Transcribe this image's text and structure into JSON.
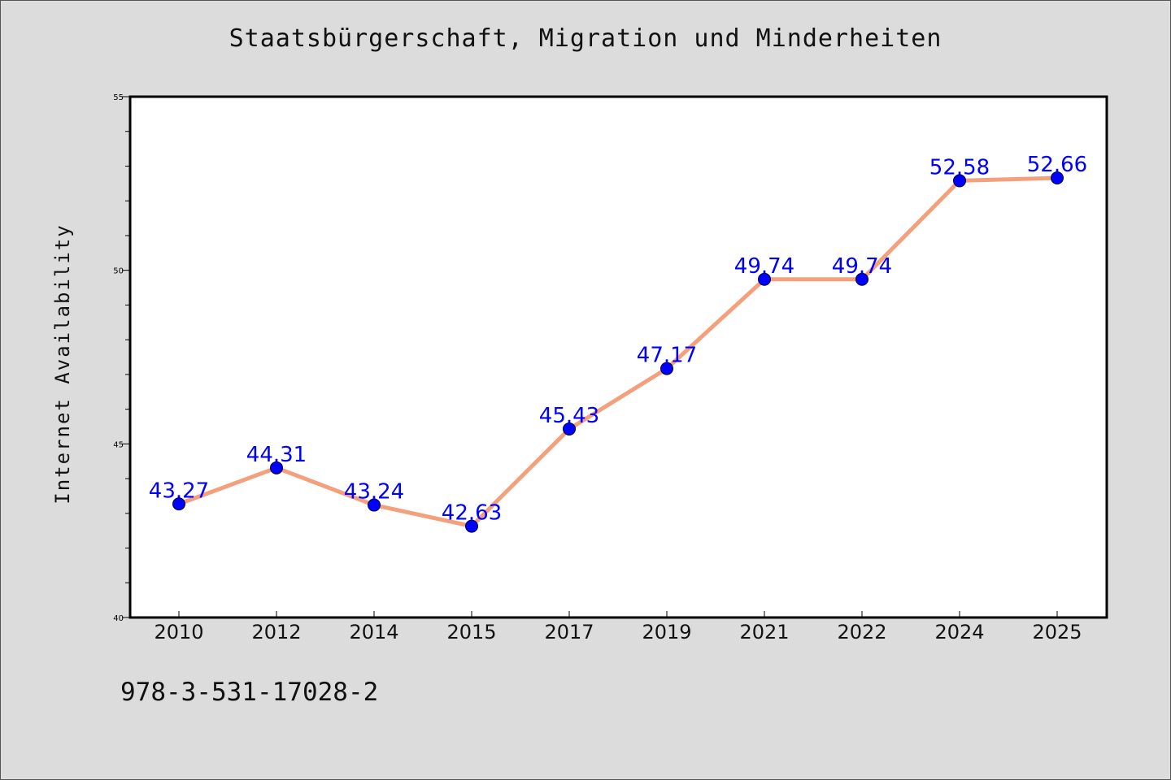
{
  "chart_data": {
    "type": "line",
    "title": "Staatsbürgerschaft, Migration und Minderheiten",
    "xlabel": "",
    "ylabel": "Internet Availability",
    "categories": [
      "2010",
      "2012",
      "2014",
      "2015",
      "2017",
      "2019",
      "2021",
      "2022",
      "2024",
      "2025"
    ],
    "series": [
      {
        "values": [
          43.27,
          44.31,
          43.24,
          42.63,
          45.43,
          47.17,
          49.74,
          49.74,
          52.58,
          52.66
        ],
        "labels": [
          "43.27",
          "44.31",
          "43.24",
          "42.63",
          "45.43",
          "47.17",
          "49.74",
          "49.74",
          "52.58",
          "52.66"
        ]
      }
    ],
    "ylim": [
      40,
      55
    ],
    "yticks": [
      "40",
      "45",
      "50",
      "55"
    ],
    "grid": false,
    "line_color": "#f4a07c",
    "marker_color": "#0000ff",
    "label_color": "#0000ff"
  },
  "footer": {
    "code": "978-3-531-17028-2"
  }
}
